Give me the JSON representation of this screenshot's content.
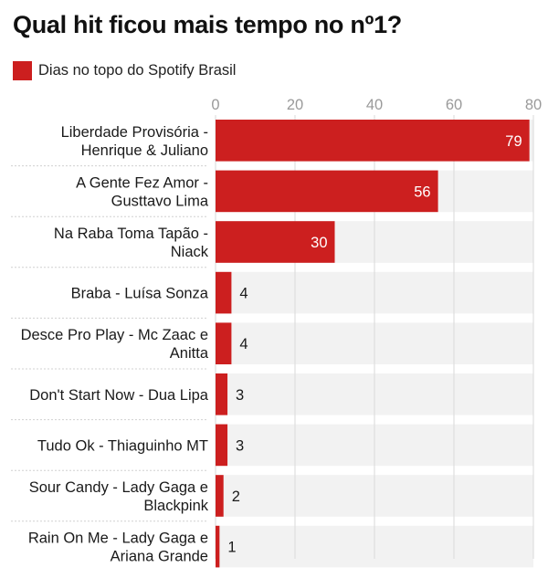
{
  "title": "Qual hit ficou mais tempo no nº1?",
  "colors": {
    "bar": "#cc1f1f",
    "band": "#f2f2f2",
    "grid": "#d9d9d9",
    "sep": "#d0d0d0"
  },
  "chart_data": {
    "type": "bar",
    "orientation": "horizontal",
    "title": "Qual hit ficou mais tempo no nº1?",
    "legend": "top-left",
    "series": [
      {
        "name": "Dias no topo do Spotify Brasil",
        "values": [
          79,
          56,
          30,
          4,
          4,
          3,
          3,
          2,
          1
        ]
      }
    ],
    "categories": [
      [
        "Liberdade Provisória -",
        "Henrique & Juliano"
      ],
      [
        "A Gente Fez Amor -",
        "Gusttavo Lima"
      ],
      [
        "Na Raba Toma Tapão -",
        "Niack"
      ],
      [
        "Braba - Luísa Sonza"
      ],
      [
        "Desce Pro Play - Mc Zaac e",
        "Anitta"
      ],
      [
        "Don't Start Now - Dua Lipa"
      ],
      [
        "Tudo Ok - Thiaguinho MT"
      ],
      [
        "Sour Candy - Lady Gaga e",
        "Blackpink"
      ],
      [
        "Rain On Me - Lady Gaga e",
        "Ariana Grande"
      ]
    ],
    "xlim": [
      0,
      80
    ],
    "xticks": [
      0,
      20,
      40,
      60,
      80
    ],
    "grid": true
  }
}
